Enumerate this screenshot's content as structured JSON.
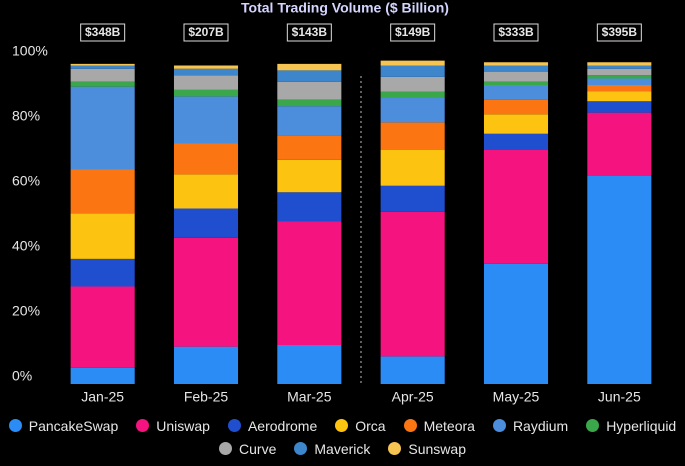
{
  "chart_data": {
    "type": "stacked_bar",
    "title": "Total Trading Volume ($ Billion)",
    "categories": [
      "Jan-25",
      "Feb-25",
      "Mar-25",
      "Apr-25",
      "May-25",
      "Jun-25"
    ],
    "totals": {
      "values": [
        348,
        207,
        143,
        149,
        333,
        395
      ],
      "value_labels": [
        "$348B",
        "$207B",
        "$143B",
        "$149B",
        "$333B",
        "$395B"
      ]
    },
    "ylim": [
      0,
      100
    ],
    "yticks": [
      {
        "value": 0,
        "label": "0%"
      },
      {
        "value": 20,
        "label": "20%"
      },
      {
        "value": 40,
        "label": "40%"
      },
      {
        "value": 60,
        "label": "60%"
      },
      {
        "value": 80,
        "label": "80%"
      },
      {
        "value": 100,
        "label": "100%"
      }
    ],
    "series": [
      {
        "name": "PancakeSwap",
        "color": "#2b8cf6",
        "values": [
          5,
          11.5,
          12,
          8.5,
          37,
          64
        ]
      },
      {
        "name": "Uniswap",
        "color": "#f5137f",
        "values": [
          25,
          33.5,
          38,
          44.5,
          35,
          19.5
        ]
      },
      {
        "name": "Aerodrome",
        "color": "#1f4fcf",
        "values": [
          8.5,
          9,
          9,
          8,
          5,
          3.5
        ]
      },
      {
        "name": "Orca",
        "color": "#fdc311",
        "values": [
          14,
          10.5,
          10,
          11,
          6,
          3
        ]
      },
      {
        "name": "Meteora",
        "color": "#fb7512",
        "values": [
          13.5,
          9.5,
          7.5,
          8.5,
          4.5,
          2
        ]
      },
      {
        "name": "Raydium",
        "color": "#4c8ddc",
        "values": [
          25.5,
          14.5,
          9,
          7.5,
          4.5,
          2
        ]
      },
      {
        "name": "Hyperliquid",
        "color": "#3aa84a",
        "values": [
          1.5,
          2,
          2,
          2,
          1,
          1
        ]
      },
      {
        "name": "Curve",
        "color": "#a8a8a8",
        "values": [
          4,
          4.5,
          5.5,
          4.5,
          3,
          2
        ]
      },
      {
        "name": "Maverick",
        "color": "#3d86cc",
        "values": [
          1,
          2,
          3.5,
          3.5,
          2,
          1
        ]
      },
      {
        "name": "Sunswap",
        "color": "#f5c451",
        "values": [
          0.5,
          1,
          2,
          1.5,
          1,
          1
        ]
      }
    ]
  }
}
